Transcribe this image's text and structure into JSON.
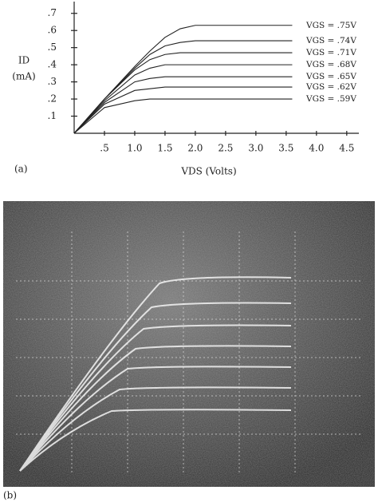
{
  "chart_data": {
    "type": "line",
    "panel_label": "(a)",
    "y_label": "ID",
    "y_unit": "(mA)",
    "x_label": "VDS (Volts)",
    "x": [
      0,
      0.5,
      1,
      1.25,
      1.5,
      1.75,
      2,
      2.5,
      3,
      3.6
    ],
    "series": [
      {
        "name": "VGS = .75V",
        "color": "#222222",
        "values": [
          0,
          0.2,
          0.39,
          0.48,
          0.56,
          0.61,
          0.63,
          0.63,
          0.63,
          0.63
        ]
      },
      {
        "name": "VGS = .74V",
        "color": "#222222",
        "values": [
          0,
          0.2,
          0.38,
          0.46,
          0.51,
          0.53,
          0.54,
          0.54,
          0.54,
          0.54
        ]
      },
      {
        "name": "VGS = .71V",
        "color": "#222222",
        "values": [
          0,
          0.2,
          0.37,
          0.43,
          0.46,
          0.47,
          0.47,
          0.47,
          0.47,
          0.47
        ]
      },
      {
        "name": "VGS = .68V",
        "color": "#222222",
        "values": [
          0,
          0.19,
          0.34,
          0.38,
          0.4,
          0.4,
          0.4,
          0.4,
          0.4,
          0.4
        ]
      },
      {
        "name": "VGS = .65V",
        "color": "#222222",
        "values": [
          0,
          0.18,
          0.3,
          0.32,
          0.33,
          0.33,
          0.33,
          0.33,
          0.33,
          0.33
        ]
      },
      {
        "name": "VGS = .62V",
        "color": "#222222",
        "values": [
          0,
          0.17,
          0.25,
          0.26,
          0.27,
          0.27,
          0.27,
          0.27,
          0.27,
          0.27
        ]
      },
      {
        "name": "VGS = .59V",
        "color": "#222222",
        "values": [
          0,
          0.15,
          0.19,
          0.2,
          0.2,
          0.2,
          0.2,
          0.2,
          0.2,
          0.2
        ]
      }
    ],
    "xlim": [
      0,
      4.7
    ],
    "ylim": [
      0,
      0.75
    ],
    "xticks": [
      {
        "value": 0.5,
        "label": ".5"
      },
      {
        "value": 1,
        "label": "1.0"
      },
      1.5,
      {
        "value": 2,
        "label": "2.0"
      },
      2.5,
      {
        "value": 3,
        "label": "3.0"
      },
      3.5,
      {
        "value": 4,
        "label": "4.0"
      },
      4.5
    ],
    "yticks": [
      {
        "value": 0.1,
        "label": ".1"
      },
      {
        "value": 0.2,
        "label": ".2"
      },
      {
        "value": 0.3,
        "label": ".3"
      },
      {
        "value": 0.4,
        "label": ".4"
      },
      {
        "value": 0.5,
        "label": ".5"
      },
      {
        "value": 0.6,
        "label": ".6"
      },
      {
        "value": 0.7,
        "label": ".7"
      }
    ],
    "grid": false
  },
  "photo": {
    "panel_label": "(b)"
  }
}
